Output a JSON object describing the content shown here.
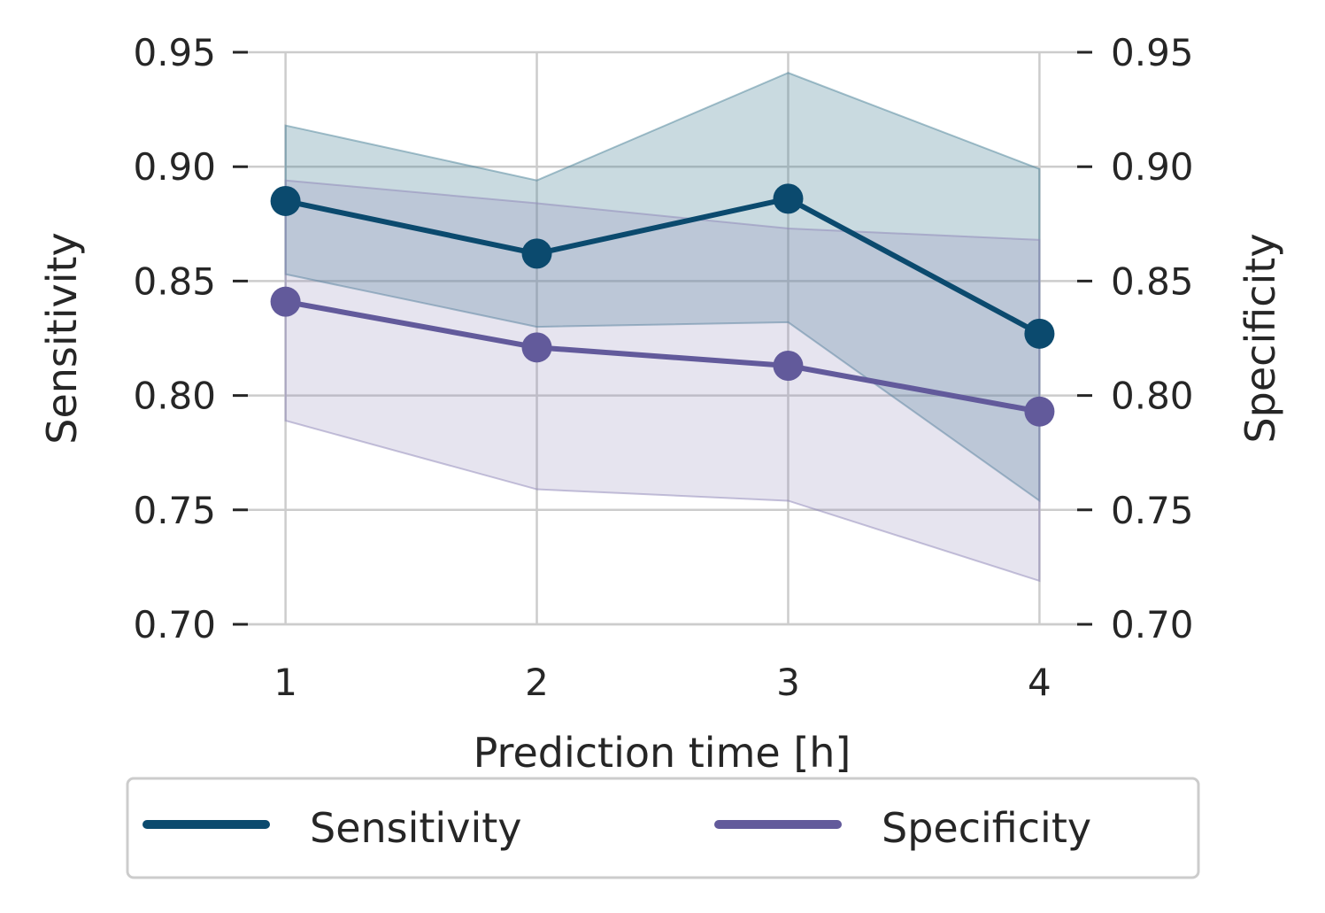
{
  "chart_data": {
    "type": "line",
    "x": [
      1,
      2,
      3,
      4
    ],
    "xlabel": "Prediction time [h]",
    "ylabel_left": "Sensitivity",
    "ylabel_right": "Specificity",
    "ylim": [
      0.7,
      0.95
    ],
    "xlim": [
      0.85,
      4.15
    ],
    "x_ticks": [
      "1",
      "2",
      "3",
      "4"
    ],
    "y_ticks": [
      "0.70",
      "0.75",
      "0.80",
      "0.85",
      "0.90",
      "0.95"
    ],
    "grid": true,
    "legend_position": "bottom-center",
    "series": [
      {
        "name": "Sensitivity",
        "axis": "left",
        "color": "#0b4a6e",
        "band_color": "#4d8399",
        "values": [
          0.885,
          0.862,
          0.886,
          0.827
        ],
        "lower": [
          0.853,
          0.83,
          0.832,
          0.754
        ],
        "upper": [
          0.918,
          0.894,
          0.941,
          0.899
        ]
      },
      {
        "name": "Specificity",
        "axis": "right",
        "color": "#625a9b",
        "band_color": "#8d86b8",
        "values": [
          0.841,
          0.821,
          0.813,
          0.793
        ],
        "lower": [
          0.789,
          0.759,
          0.754,
          0.719
        ],
        "upper": [
          0.894,
          0.884,
          0.873,
          0.868
        ]
      }
    ]
  }
}
